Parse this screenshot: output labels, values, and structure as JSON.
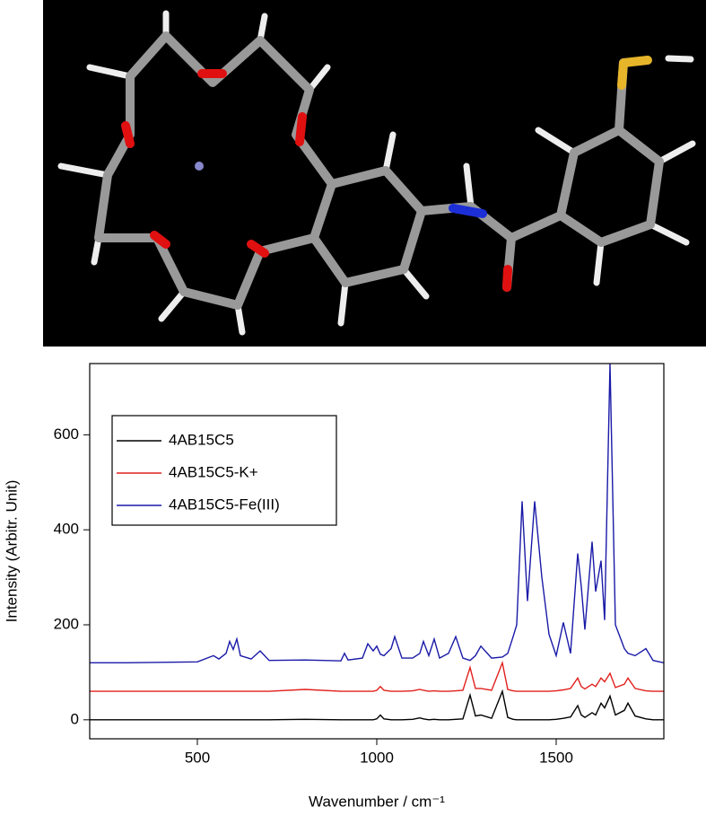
{
  "chart_data": {
    "type": "line",
    "x_label": "Wavenumber / cm⁻¹",
    "y_label": "Intensity (Arbitr. Unit)",
    "x": [
      200,
      300,
      400,
      500,
      545,
      560,
      580,
      590,
      600,
      610,
      620,
      650,
      675,
      700,
      800,
      900,
      910,
      920,
      960,
      975,
      990,
      1000,
      1010,
      1020,
      1040,
      1050,
      1070,
      1100,
      1120,
      1130,
      1145,
      1160,
      1175,
      1200,
      1220,
      1240,
      1260,
      1275,
      1290,
      1320,
      1350,
      1365,
      1380,
      1390,
      1405,
      1420,
      1440,
      1460,
      1480,
      1500,
      1520,
      1540,
      1560,
      1570,
      1580,
      1600,
      1610,
      1625,
      1635,
      1650,
      1665,
      1690,
      1700,
      1720,
      1750,
      1770,
      1800
    ],
    "series": [
      {
        "name": "4AB15C5",
        "color": "#000000",
        "values": [
          0,
          0,
          0,
          0,
          0,
          0,
          0,
          0,
          0,
          0,
          0,
          0,
          0,
          0,
          1,
          0,
          0,
          0,
          0,
          0,
          0,
          2,
          10,
          2,
          0,
          0,
          0,
          1,
          4,
          2,
          0,
          1,
          0,
          0,
          1,
          2,
          52,
          8,
          10,
          3,
          60,
          5,
          1,
          0,
          0,
          0,
          0,
          0,
          0,
          1,
          3,
          6,
          30,
          10,
          5,
          15,
          10,
          35,
          25,
          50,
          10,
          20,
          35,
          8,
          2,
          0,
          0
        ]
      },
      {
        "name": "4AB15C5-K+",
        "color": "#e0201c",
        "values": [
          60,
          60,
          60,
          60,
          60,
          60,
          60,
          60,
          60,
          60,
          60,
          60,
          60,
          60,
          64,
          60,
          60,
          60,
          60,
          60,
          60,
          62,
          70,
          62,
          60,
          60,
          60,
          61,
          64,
          62,
          60,
          61,
          60,
          60,
          61,
          62,
          110,
          66,
          66,
          62,
          120,
          64,
          61,
          60,
          60,
          60,
          60,
          60,
          60,
          61,
          63,
          66,
          88,
          70,
          65,
          75,
          70,
          88,
          80,
          98,
          68,
          75,
          88,
          66,
          61,
          60,
          60
        ]
      },
      {
        "name": "4AB15C5-Fe(III)",
        "color": "#1a1aa8",
        "values": [
          120,
          120,
          121,
          122,
          135,
          128,
          140,
          165,
          148,
          170,
          135,
          128,
          145,
          125,
          126,
          124,
          140,
          126,
          130,
          160,
          145,
          155,
          138,
          135,
          150,
          175,
          130,
          130,
          140,
          165,
          135,
          170,
          130,
          140,
          175,
          130,
          125,
          135,
          155,
          130,
          132,
          140,
          175,
          200,
          460,
          250,
          460,
          300,
          180,
          135,
          205,
          140,
          350,
          280,
          190,
          375,
          270,
          335,
          210,
          750,
          200,
          150,
          140,
          135,
          150,
          125,
          120
        ]
      }
    ],
    "xlim": [
      200,
      1800
    ],
    "ylim": [
      -40,
      750
    ],
    "xticks": [
      500,
      1000,
      1500
    ],
    "yticks": [
      0,
      200,
      400,
      600
    ],
    "legend": "upper-left"
  }
}
